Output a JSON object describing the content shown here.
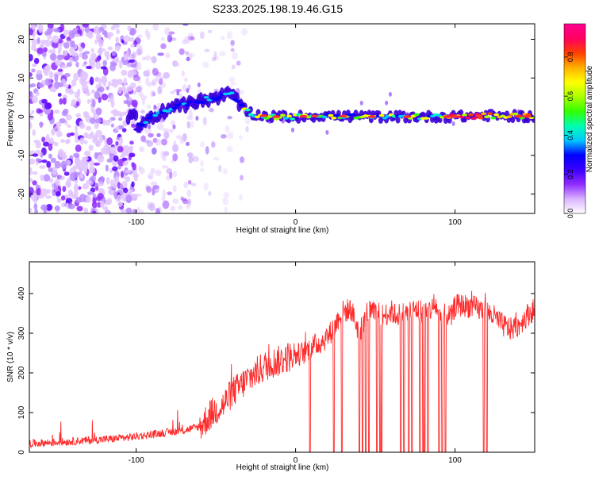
{
  "title": "S233.2025.198.19.46.G15",
  "chart_data": [
    {
      "type": "heatmap",
      "xlabel": "Height of straight line (km)",
      "ylabel": "Frequency (Hz)",
      "xlim": [
        -167,
        150
      ],
      "ylim": [
        -25,
        24
      ],
      "xticks": [
        -100,
        0,
        100
      ],
      "yticks": [
        -20,
        -10,
        0,
        10,
        20
      ],
      "colorbar": {
        "label": "Normalized spectral amplitude",
        "range": [
          0,
          0.97
        ],
        "ticks": [
          0.0,
          0.2,
          0.4,
          0.6,
          0.8
        ],
        "tick_labels": [
          "0.0",
          "0.2",
          "0.4",
          "0.6",
          "0.8"
        ],
        "colors": [
          "#ffffff",
          "#d9b3ff",
          "#8f2cff",
          "#3b00ff",
          "#0000ff",
          "#00c8ff",
          "#00ffb0",
          "#33ff00",
          "#aaff00",
          "#ffff00",
          "#ffb000",
          "#ff4000",
          "#ff0060",
          "#ff0090"
        ]
      },
      "trace_x": [
        -100,
        -90,
        -80,
        -70,
        -60,
        -50,
        -40,
        -33,
        -25,
        -15,
        0,
        20,
        40,
        60,
        80,
        100,
        120,
        150
      ],
      "trace_y": [
        -3,
        0,
        2,
        3,
        4,
        5,
        6,
        2,
        0.5,
        0,
        0,
        0.3,
        0,
        0,
        0,
        0,
        0.3,
        0
      ]
    },
    {
      "type": "line",
      "xlabel": "Height of straight line (km)",
      "ylabel": "SNR (10 * v/v)",
      "xlim": [
        -167,
        150
      ],
      "ylim": [
        0,
        480
      ],
      "xticks": [
        -100,
        0,
        100
      ],
      "yticks": [
        0,
        100,
        200,
        300,
        400
      ],
      "series": [
        {
          "color": "#ff2a2a",
          "x": [
            -167,
            -150,
            -130,
            -110,
            -100,
            -90,
            -80,
            -70,
            -60,
            -52,
            -45,
            -40,
            -35,
            -30,
            -25,
            -20,
            -15,
            -10,
            -5,
            0,
            5,
            10,
            15,
            20,
            25,
            28,
            30,
            35,
            40,
            45,
            50,
            55,
            58,
            60,
            63,
            65,
            70,
            75,
            80,
            85,
            88,
            90,
            93,
            95,
            98,
            100,
            105,
            110,
            115,
            120,
            125,
            130,
            135,
            140,
            145,
            150
          ],
          "y": [
            22,
            25,
            30,
            35,
            40,
            45,
            50,
            55,
            65,
            100,
            120,
            150,
            165,
            185,
            200,
            215,
            225,
            230,
            240,
            245,
            250,
            265,
            275,
            290,
            320,
            350,
            355,
            360,
            300,
            355,
            350,
            345,
            350,
            355,
            345,
            350,
            350,
            360,
            355,
            360,
            370,
            350,
            345,
            345,
            340,
            370,
            370,
            368,
            360,
            355,
            340,
            320,
            310,
            320,
            345,
            360
          ],
          "dropouts": [
            9,
            24,
            29,
            40,
            42,
            44,
            46,
            51,
            53,
            54,
            66,
            68,
            71,
            73,
            78,
            80,
            81,
            83,
            90,
            92,
            94,
            118,
            120
          ]
        }
      ]
    }
  ]
}
